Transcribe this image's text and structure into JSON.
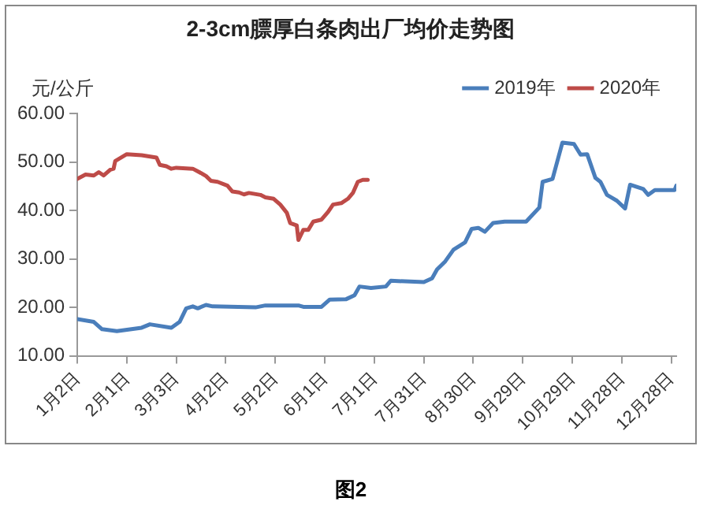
{
  "chart_data": {
    "type": "line",
    "title": "2-3cm膘厚白条肉出厂均价走势图",
    "ylabel": "元/公斤",
    "annotations": [
      "图2"
    ],
    "xlim": [
      "--01-02",
      "--12-31"
    ],
    "xticks": [
      {
        "value": "--01-02",
        "label": "1月2日"
      },
      {
        "value": "--02-01",
        "label": "2月1日"
      },
      {
        "value": "--03-03",
        "label": "3月3日"
      },
      {
        "value": "--04-02",
        "label": "4月2日"
      },
      {
        "value": "--05-02",
        "label": "5月2日"
      },
      {
        "value": "--06-01",
        "label": "6月1日"
      },
      {
        "value": "--07-01",
        "label": "7月1日"
      },
      {
        "value": "--07-31",
        "label": "7月31日"
      },
      {
        "value": "--08-30",
        "label": "8月30日"
      },
      {
        "value": "--09-29",
        "label": "9月29日"
      },
      {
        "value": "--10-29",
        "label": "10月29日"
      },
      {
        "value": "--11-28",
        "label": "11月28日"
      },
      {
        "value": "--12-28",
        "label": "12月28日"
      }
    ],
    "ylim": [
      10,
      60
    ],
    "yticks": [
      {
        "value": 10,
        "label": "10.00"
      },
      {
        "value": 20,
        "label": "20.00"
      },
      {
        "value": 30,
        "label": "30.00"
      },
      {
        "value": 40,
        "label": "40.00"
      },
      {
        "value": 50,
        "label": "50.00"
      },
      {
        "value": 60,
        "label": "60.00"
      }
    ],
    "grid": false,
    "legend": "top right",
    "marker": "none",
    "line_style": "solid",
    "series": [
      {
        "name": "2019年",
        "color": "#4a7ebb",
        "x": [
          "--01-02",
          "--01-12",
          "--01-17",
          "--01-26",
          "--02-10",
          "--02-15",
          "--02-28",
          "--03-05",
          "--03-09",
          "--03-13",
          "--03-16",
          "--03-21",
          "--03-25",
          "--04-20",
          "--04-26",
          "--05-16",
          "--05-19",
          "--05-30",
          "--06-04",
          "--06-14",
          "--06-19",
          "--06-22",
          "--06-29",
          "--07-08",
          "--07-11",
          "--07-31",
          "--08-05",
          "--08-08",
          "--08-13",
          "--08-18",
          "--08-25",
          "--08-29",
          "--09-02",
          "--09-06",
          "--09-11",
          "--09-18",
          "--10-01",
          "--10-09",
          "--10-11",
          "--10-17",
          "--10-23",
          "--10-30",
          "--11-03",
          "--11-07",
          "--11-12",
          "--11-15",
          "--11-19",
          "--11-25",
          "--11-30",
          "--12-03",
          "--12-11",
          "--12-14",
          "--12-18",
          "--12-30",
          "--12-31"
        ],
        "values": [
          17.6,
          17.0,
          15.5,
          15.1,
          15.8,
          16.5,
          15.8,
          17.0,
          19.8,
          20.2,
          19.8,
          20.5,
          20.2,
          20.0,
          20.4,
          20.4,
          20.1,
          20.1,
          21.6,
          21.7,
          22.5,
          24.3,
          24.0,
          24.3,
          25.5,
          25.2,
          26.0,
          27.8,
          29.5,
          31.9,
          33.4,
          36.2,
          36.4,
          35.6,
          37.4,
          37.7,
          37.7,
          40.6,
          45.9,
          46.5,
          54.0,
          53.7,
          51.5,
          51.6,
          46.7,
          45.9,
          43.2,
          42.0,
          40.4,
          45.3,
          44.4,
          43.2,
          44.2,
          44.2,
          45.1
        ]
      },
      {
        "name": "2020年",
        "color": "#be4b48",
        "x": [
          "--01-02",
          "--01-07",
          "--01-12",
          "--01-15",
          "--01-18",
          "--01-22",
          "--01-24",
          "--01-25",
          "--01-30",
          "--02-01",
          "--02-10",
          "--02-19",
          "--02-21",
          "--02-25",
          "--02-28",
          "--03-03",
          "--03-13",
          "--03-18",
          "--03-21",
          "--03-24",
          "--03-28",
          "--04-03",
          "--04-06",
          "--04-10",
          "--04-13",
          "--04-16",
          "--04-23",
          "--04-26",
          "--05-01",
          "--05-05",
          "--05-09",
          "--05-11",
          "--05-15",
          "--05-16",
          "--05-19",
          "--05-22",
          "--05-25",
          "--05-30",
          "--06-03",
          "--06-06",
          "--06-11",
          "--06-15",
          "--06-18",
          "--06-21",
          "--06-24",
          "--06-27"
        ],
        "values": [
          46.5,
          47.4,
          47.2,
          47.9,
          47.2,
          48.4,
          48.6,
          50.2,
          51.2,
          51.6,
          51.4,
          50.9,
          49.4,
          49.1,
          48.6,
          48.8,
          48.6,
          47.7,
          47.1,
          46.1,
          45.9,
          45.1,
          43.9,
          43.7,
          43.3,
          43.6,
          43.2,
          42.7,
          42.4,
          41.2,
          39.5,
          37.4,
          36.9,
          33.9,
          36.0,
          36.0,
          37.7,
          38.1,
          39.7,
          41.2,
          41.5,
          42.4,
          43.6,
          45.9,
          46.3,
          46.3
        ]
      }
    ]
  }
}
